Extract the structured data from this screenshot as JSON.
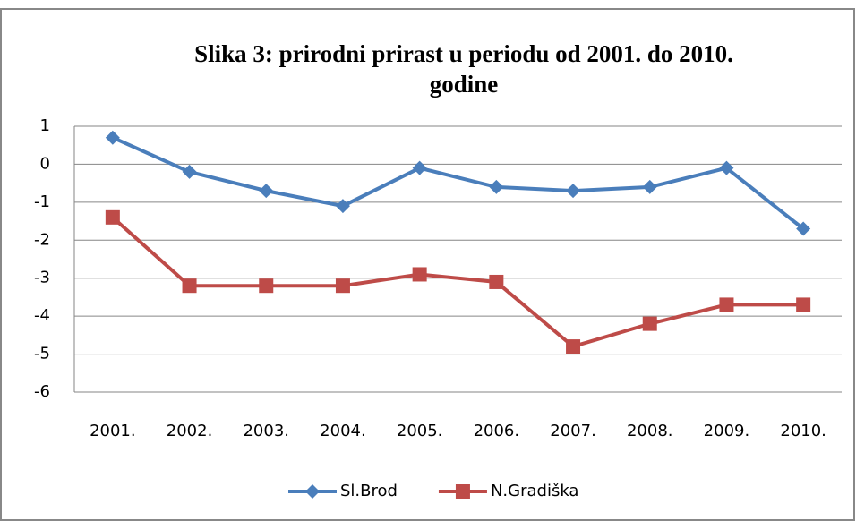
{
  "chart_data": {
    "type": "line",
    "title": [
      "Slika 3: prirodni prirast u periodu od 2001. do 2010.",
      "godine"
    ],
    "categories": [
      "2001.",
      "2002.",
      "2003.",
      "2004.",
      "2005.",
      "2006.",
      "2007.",
      "2008.",
      "2009.",
      "2010."
    ],
    "series": [
      {
        "name": "Sl.Brod",
        "color": "#4a7ebb",
        "marker": "diamond",
        "values": [
          0.7,
          -0.2,
          -0.7,
          -1.1,
          -0.1,
          -0.6,
          -0.7,
          -0.6,
          -0.1,
          -1.7
        ]
      },
      {
        "name": "N.Gradiška",
        "color": "#be4b48",
        "marker": "square",
        "values": [
          -1.4,
          -3.2,
          -3.2,
          -3.2,
          -2.9,
          -3.1,
          -4.8,
          -4.2,
          -3.7,
          -3.7
        ]
      }
    ],
    "ylim": [
      -6,
      1
    ],
    "yticks": [
      -6,
      -5,
      -4,
      -3,
      -2,
      -1,
      0,
      1
    ],
    "grid": true,
    "legend": "bottom"
  }
}
